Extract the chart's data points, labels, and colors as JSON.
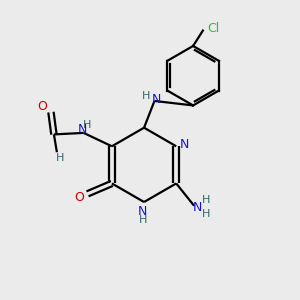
{
  "bg_color": "#ebebeb",
  "bond_color": "#000000",
  "N_color": "#1414cc",
  "O_color": "#cc0000",
  "Cl_color": "#33bb33",
  "H_color": "#336666",
  "line_width": 1.6,
  "figsize": [
    3.0,
    3.0
  ],
  "dpi": 100,
  "xlim": [
    0,
    10
  ],
  "ylim": [
    0,
    10
  ]
}
